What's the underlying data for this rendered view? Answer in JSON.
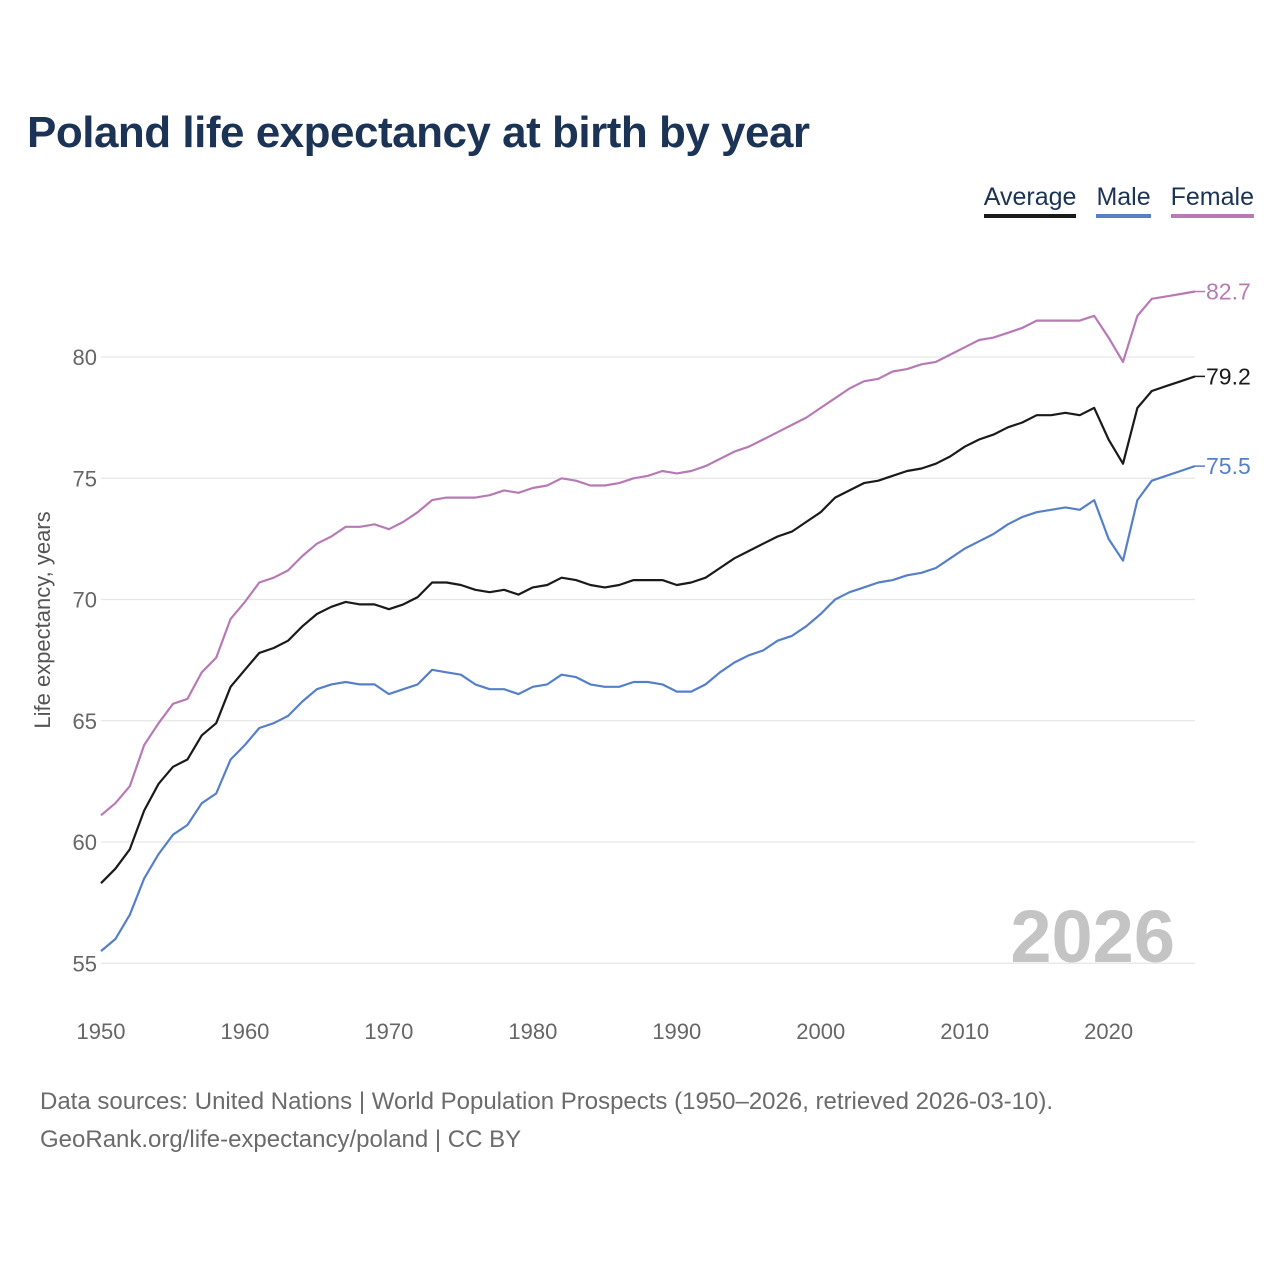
{
  "title": "Poland life expectancy at birth by year",
  "legend": [
    {
      "label": "Average",
      "color": "#1a1a1a"
    },
    {
      "label": "Male",
      "color": "#5580c8"
    },
    {
      "label": "Female",
      "color": "#b77ab5"
    }
  ],
  "watermark_year": "2026",
  "footer": {
    "line1": "Data sources: United Nations | World Population Prospects (1950–2026, retrieved 2026-03-10).",
    "line2": "GeoRank.org/life-expectancy/poland | CC BY"
  },
  "chart_data": {
    "type": "line",
    "title": "Poland life expectancy at birth by year",
    "xlabel": "",
    "ylabel": "Life expectancy, years",
    "xlim": [
      1950,
      2026
    ],
    "ylim": [
      55,
      83
    ],
    "grid": true,
    "legend_position": "top-right",
    "x_ticks": [
      1950,
      1960,
      1970,
      1980,
      1990,
      2000,
      2010,
      2020
    ],
    "y_ticks": [
      55,
      60,
      65,
      70,
      75,
      80
    ],
    "x_start": 1950,
    "series": [
      {
        "name": "Average",
        "color": "#1a1a1a",
        "end_label": "79.2",
        "values": [
          58.3,
          58.9,
          59.7,
          61.3,
          62.4,
          63.1,
          63.4,
          64.4,
          64.9,
          66.4,
          67.1,
          67.8,
          68.0,
          68.3,
          68.9,
          69.4,
          69.7,
          69.9,
          69.8,
          69.8,
          69.6,
          69.8,
          70.1,
          70.7,
          70.7,
          70.6,
          70.4,
          70.3,
          70.4,
          70.2,
          70.5,
          70.6,
          70.9,
          70.8,
          70.6,
          70.5,
          70.6,
          70.8,
          70.8,
          70.8,
          70.6,
          70.7,
          70.9,
          71.3,
          71.7,
          72.0,
          72.3,
          72.6,
          72.8,
          73.2,
          73.6,
          74.2,
          74.5,
          74.8,
          74.9,
          75.1,
          75.3,
          75.4,
          75.6,
          75.9,
          76.3,
          76.6,
          76.8,
          77.1,
          77.3,
          77.6,
          77.6,
          77.7,
          77.6,
          77.9,
          76.6,
          75.6,
          77.9,
          78.6,
          78.8,
          79.0,
          79.2
        ]
      },
      {
        "name": "Male",
        "color": "#5580c8",
        "end_label": "75.5",
        "values": [
          55.5,
          56.0,
          57.0,
          58.5,
          59.5,
          60.3,
          60.7,
          61.6,
          62.0,
          63.4,
          64.0,
          64.7,
          64.9,
          65.2,
          65.8,
          66.3,
          66.5,
          66.6,
          66.5,
          66.5,
          66.1,
          66.3,
          66.5,
          67.1,
          67.0,
          66.9,
          66.5,
          66.3,
          66.3,
          66.1,
          66.4,
          66.5,
          66.9,
          66.8,
          66.5,
          66.4,
          66.4,
          66.6,
          66.6,
          66.5,
          66.2,
          66.2,
          66.5,
          67.0,
          67.4,
          67.7,
          67.9,
          68.3,
          68.5,
          68.9,
          69.4,
          70.0,
          70.3,
          70.5,
          70.7,
          70.8,
          71.0,
          71.1,
          71.3,
          71.7,
          72.1,
          72.4,
          72.7,
          73.1,
          73.4,
          73.6,
          73.7,
          73.8,
          73.7,
          74.1,
          72.5,
          71.6,
          74.1,
          74.9,
          75.1,
          75.3,
          75.5
        ]
      },
      {
        "name": "Female",
        "color": "#b77ab5",
        "end_label": "82.7",
        "values": [
          61.1,
          61.6,
          62.3,
          64.0,
          64.9,
          65.7,
          65.9,
          67.0,
          67.6,
          69.2,
          69.9,
          70.7,
          70.9,
          71.2,
          71.8,
          72.3,
          72.6,
          73.0,
          73.0,
          73.1,
          72.9,
          73.2,
          73.6,
          74.1,
          74.2,
          74.2,
          74.2,
          74.3,
          74.5,
          74.4,
          74.6,
          74.7,
          75.0,
          74.9,
          74.7,
          74.7,
          74.8,
          75.0,
          75.1,
          75.3,
          75.2,
          75.3,
          75.5,
          75.8,
          76.1,
          76.3,
          76.6,
          76.9,
          77.2,
          77.5,
          77.9,
          78.3,
          78.7,
          79.0,
          79.1,
          79.4,
          79.5,
          79.7,
          79.8,
          80.1,
          80.4,
          80.7,
          80.8,
          81.0,
          81.2,
          81.5,
          81.5,
          81.5,
          81.5,
          81.7,
          80.8,
          79.8,
          81.7,
          82.4,
          82.5,
          82.6,
          82.7
        ]
      }
    ]
  }
}
